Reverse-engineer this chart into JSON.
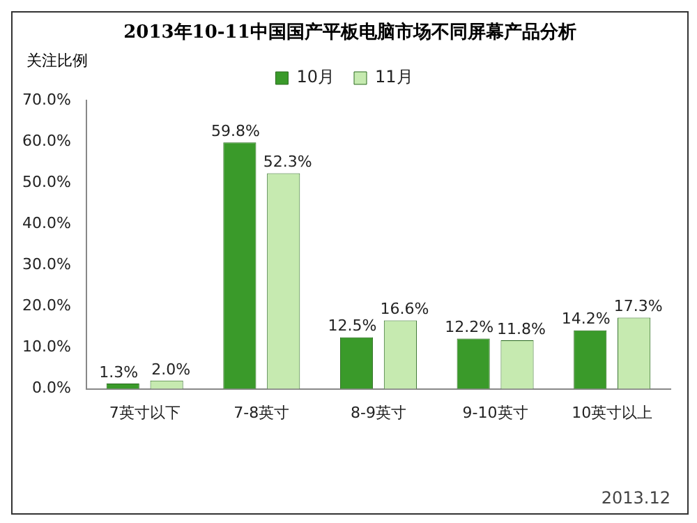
{
  "chart_data": {
    "type": "bar",
    "title": "2013年10-11中国国产平板电脑市场不同屏幕产品分析",
    "ylabel": "关注比例",
    "categories": [
      "7英寸以下",
      "7-8英寸",
      "8-9英寸",
      "9-10英寸",
      "10英寸以上"
    ],
    "series": [
      {
        "name": "10月",
        "color": "#3a9a2a",
        "values": [
          1.3,
          59.8,
          12.5,
          12.2,
          14.2
        ],
        "value_labels": [
          "1.3%",
          "59.8%",
          "12.5%",
          "12.2%",
          "14.2%"
        ]
      },
      {
        "name": "11月",
        "color": "#c6eab0",
        "values": [
          2.0,
          52.3,
          16.6,
          11.8,
          17.3
        ],
        "value_labels": [
          "2.0%",
          "52.3%",
          "16.6%",
          "11.8%",
          "17.3%"
        ]
      }
    ],
    "ylim": [
      0,
      70
    ],
    "yticks": [
      {
        "value": 0,
        "label": "0.0%"
      },
      {
        "value": 10,
        "label": "10.0%"
      },
      {
        "value": 20,
        "label": "20.0%"
      },
      {
        "value": 30,
        "label": "30.0%"
      },
      {
        "value": 40,
        "label": "40.0%"
      },
      {
        "value": 50,
        "label": "50.0%"
      },
      {
        "value": 60,
        "label": "60.0%"
      },
      {
        "value": 70,
        "label": "70.0%"
      }
    ],
    "grid": false,
    "legend": "top",
    "annotations": [
      "2013.12"
    ]
  }
}
